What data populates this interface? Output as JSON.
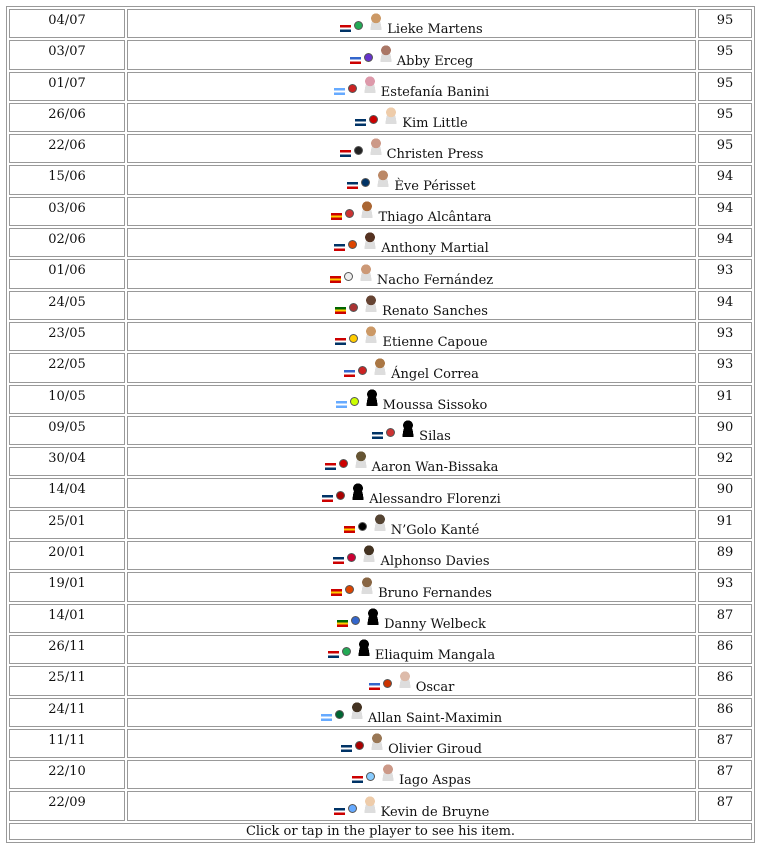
{
  "table": {
    "rows": [
      [
        "04/07",
        "Lieke Martens",
        95
      ],
      [
        "03/07",
        "Abby Erceg",
        95
      ],
      [
        "01/07",
        "Estefanía Banini",
        95
      ],
      [
        "26/06",
        "Kim Little",
        95
      ],
      [
        "22/06",
        "Christen Press",
        95
      ],
      [
        "15/06",
        "Ève Périsset",
        94
      ],
      [
        "03/06",
        "Thiago Alcântara",
        94
      ],
      [
        "02/06",
        "Anthony Martial",
        94
      ],
      [
        "01/06",
        "Nacho Fernández",
        93
      ],
      [
        "24/05",
        "Renato Sanches",
        94
      ],
      [
        "23/05",
        "Etienne Capoue",
        93
      ],
      [
        "22/05",
        "Ángel Correa",
        93
      ],
      [
        "10/05",
        "Moussa Sissoko",
        91
      ],
      [
        "09/05",
        "Silas",
        90
      ],
      [
        "30/04",
        "Aaron Wan-Bissaka",
        92
      ],
      [
        "14/04",
        "Alessandro Florenzi",
        90
      ],
      [
        "25/01",
        "N’Golo Kanté",
        91
      ],
      [
        "20/01",
        "Alphonso Davies",
        89
      ],
      [
        "19/01",
        "Bruno Fernandes",
        93
      ],
      [
        "14/01",
        "Danny Welbeck",
        87
      ],
      [
        "26/11",
        "Eliaquim Mangala",
        86
      ],
      [
        "25/11",
        "Oscar",
        86
      ],
      [
        "24/11",
        "Allan Saint-Maximin",
        86
      ],
      [
        "11/11",
        "Olivier Giroud",
        87
      ],
      [
        "22/10",
        "Iago Aspas",
        87
      ],
      [
        "22/09",
        "Kevin de Bruyne",
        87
      ]
    ],
    "footer": "Click or tap in the player to see his item."
  }
}
